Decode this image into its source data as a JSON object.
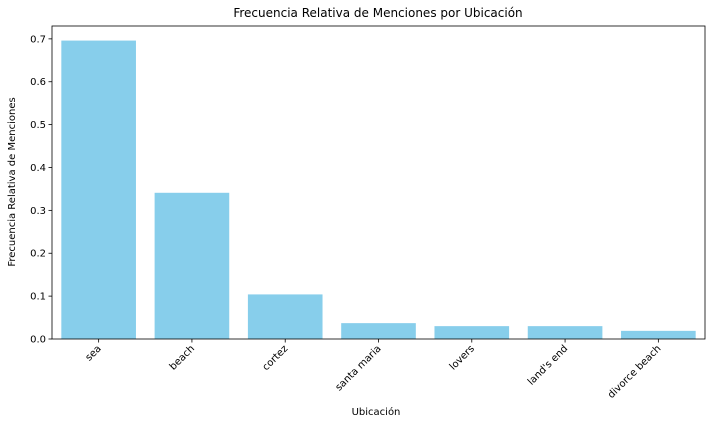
{
  "chart_data": {
    "type": "bar",
    "title": "Frecuencia Relativa de Menciones por Ubicación",
    "xlabel": "Ubicación",
    "ylabel": "Frecuencia Relativa de Menciones",
    "categories": [
      "sea",
      "beach",
      "cortez",
      "santa maria",
      "lovers",
      "land's end",
      "divorce beach"
    ],
    "values": [
      0.696,
      0.341,
      0.104,
      0.037,
      0.03,
      0.03,
      0.019
    ],
    "ylim": [
      0,
      0.73
    ],
    "yticks": [
      "0.0",
      "0.1",
      "0.2",
      "0.3",
      "0.4",
      "0.5",
      "0.6",
      "0.7"
    ],
    "bar_color": "#87CEEB",
    "grid": false
  }
}
